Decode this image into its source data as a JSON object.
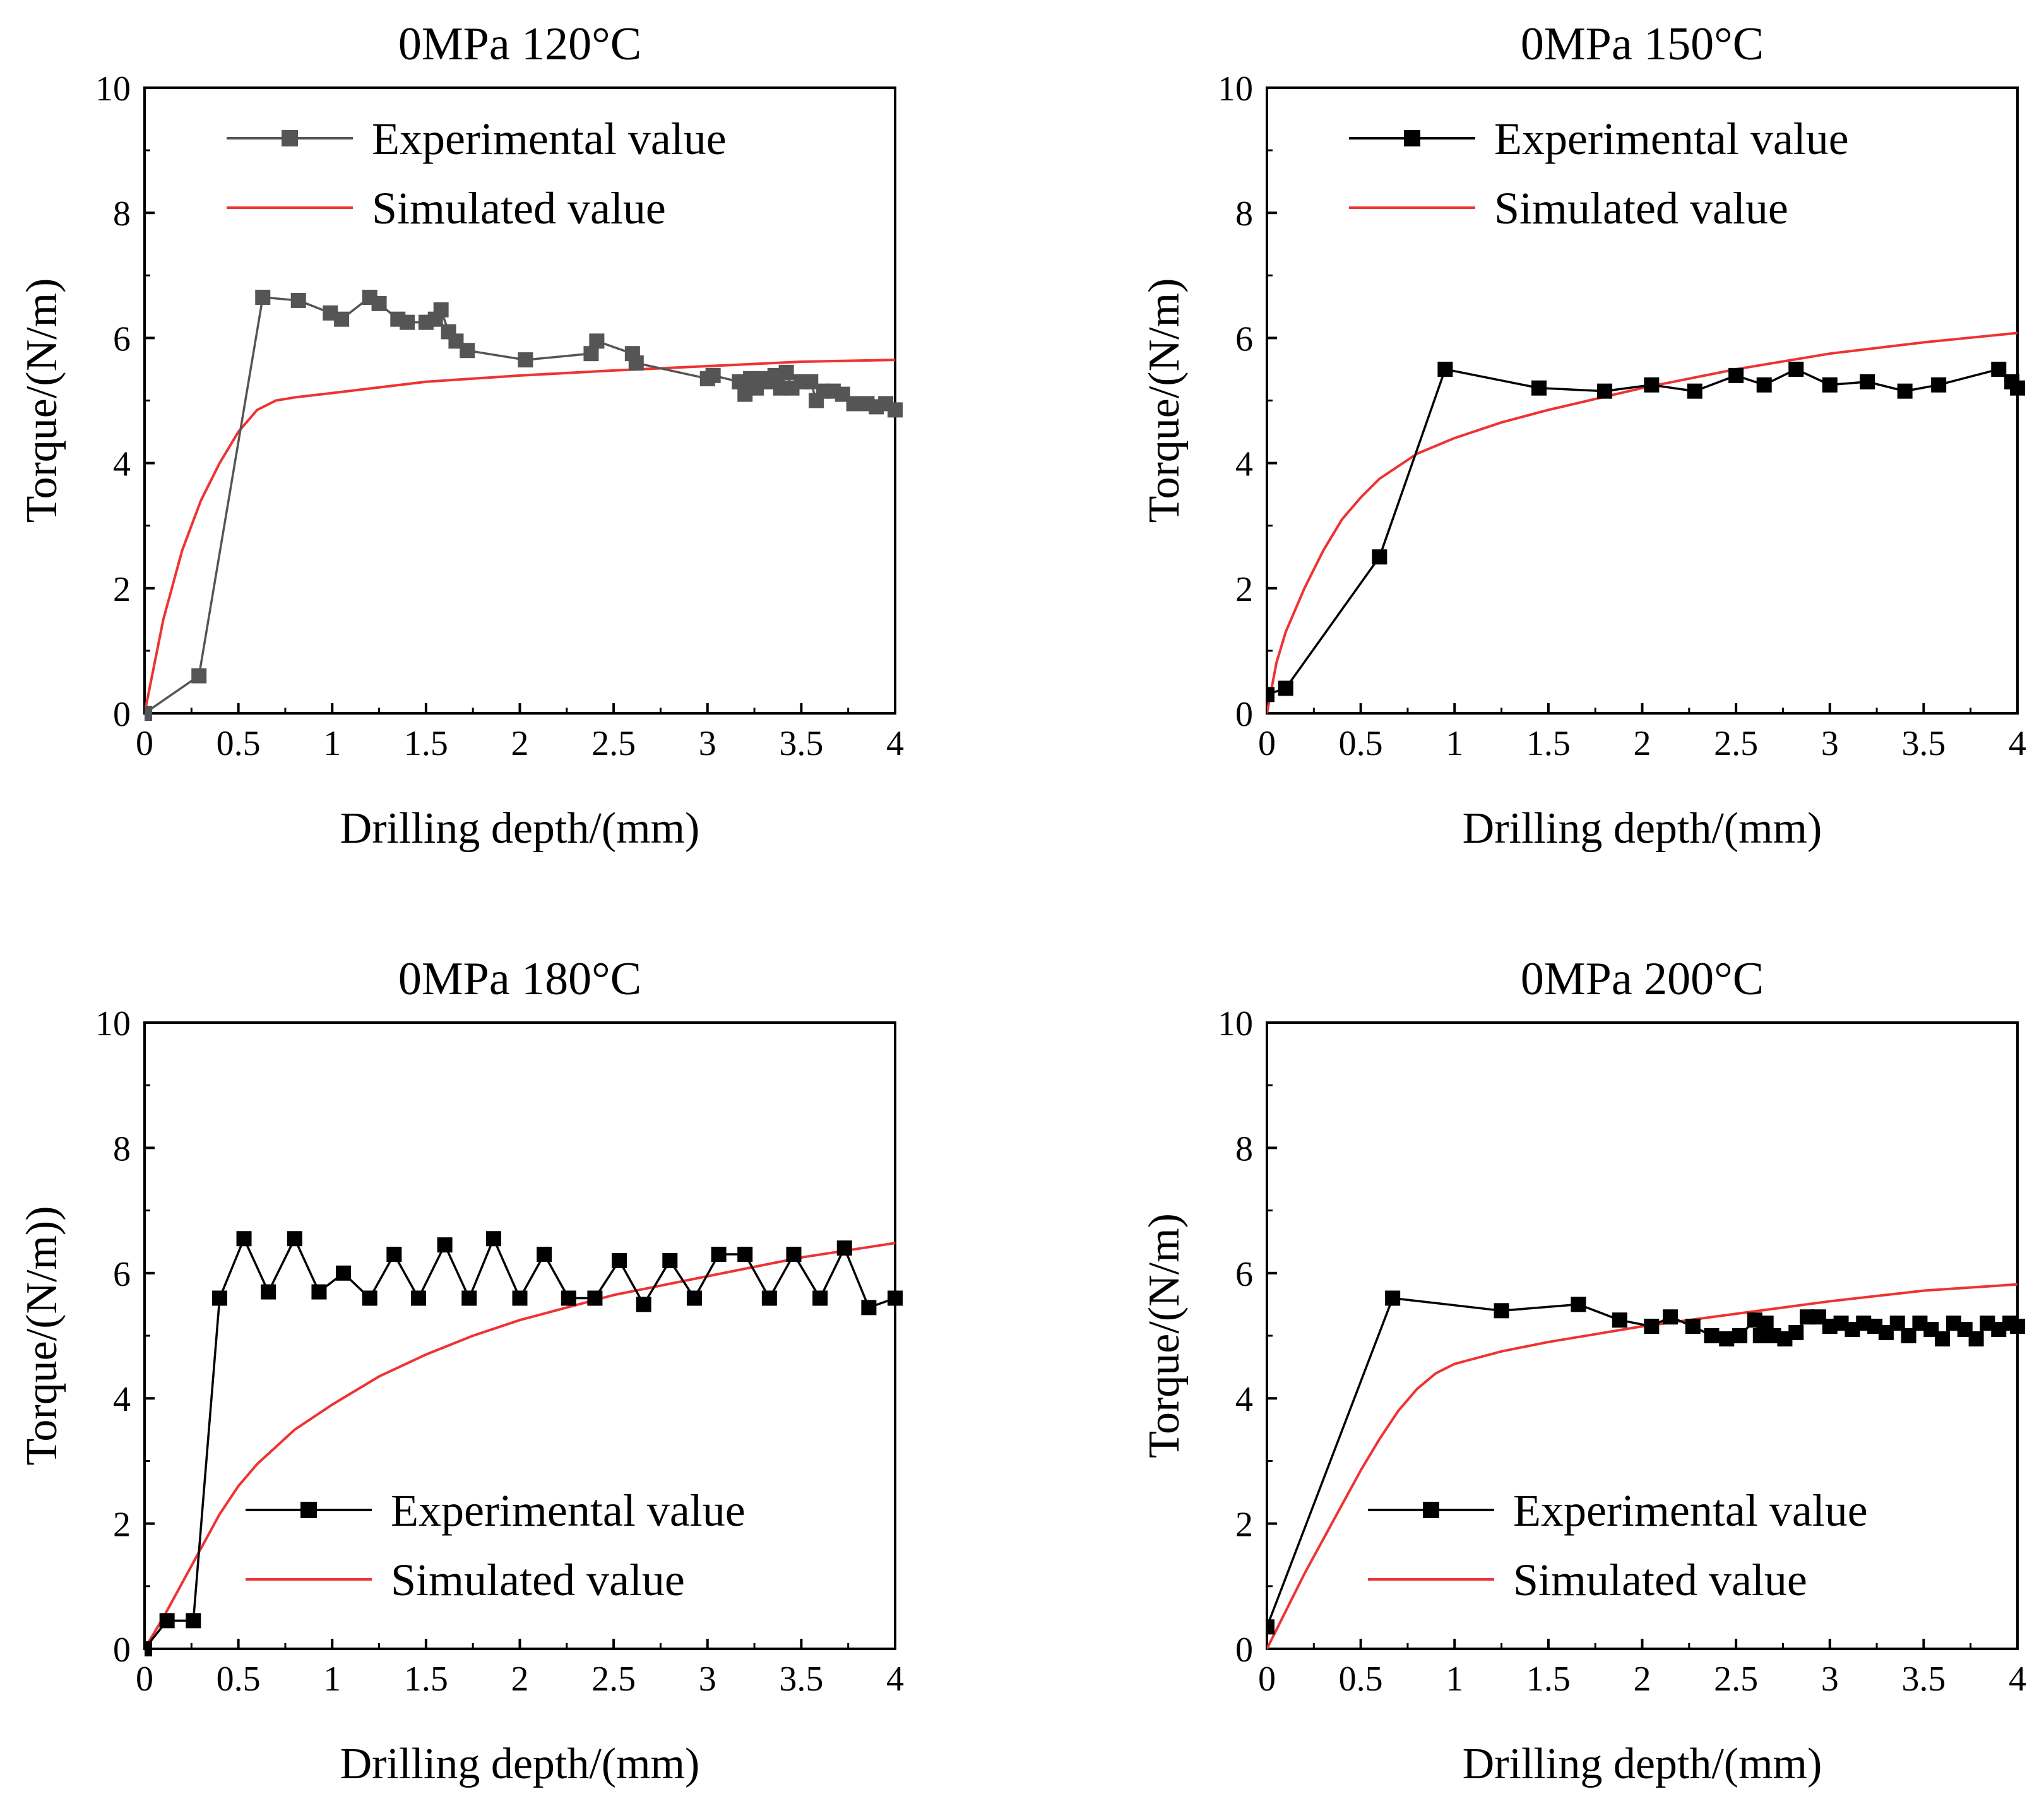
{
  "colors": {
    "experimental_panel1": "#555555",
    "experimental": "#000000",
    "simulated": "#ee3333",
    "axis": "#000000"
  },
  "chart_data": [
    {
      "type": "line",
      "title": "0MPa 120°C",
      "xlabel": "Drilling depth/(mm)",
      "ylabel": "Torque/(N/m)",
      "xlim": [
        0,
        4
      ],
      "ylim": [
        0,
        10
      ],
      "xticks": [
        "0",
        "0.5",
        "1",
        "1.5",
        "2",
        "2.5",
        "3",
        "3.5",
        "4"
      ],
      "yticks": [
        "0",
        "2",
        "4",
        "6",
        "8",
        "10"
      ],
      "legend_position": "top",
      "series": [
        {
          "name": "Experimental value",
          "marker": "square",
          "x": [
            0,
            0.29,
            0.63,
            0.82,
            0.99,
            1.05,
            1.2,
            1.25,
            1.35,
            1.4,
            1.5,
            1.55,
            1.58,
            1.62,
            1.66,
            1.72,
            2.03,
            2.38,
            2.41,
            2.6,
            2.62,
            3.0,
            3.03,
            3.17,
            3.2,
            3.23,
            3.26,
            3.3,
            3.33,
            3.36,
            3.39,
            3.42,
            3.45,
            3.5,
            3.55,
            3.58,
            3.62,
            3.67,
            3.72,
            3.78,
            3.85,
            3.9,
            3.95,
            4.0
          ],
          "y": [
            0,
            0.6,
            6.65,
            6.6,
            6.4,
            6.3,
            6.65,
            6.55,
            6.3,
            6.25,
            6.25,
            6.3,
            6.45,
            6.1,
            5.95,
            5.8,
            5.65,
            5.75,
            5.95,
            5.75,
            5.6,
            5.35,
            5.4,
            5.3,
            5.1,
            5.35,
            5.2,
            5.35,
            5.3,
            5.4,
            5.2,
            5.45,
            5.2,
            5.3,
            5.3,
            5.0,
            5.15,
            5.15,
            5.1,
            4.95,
            4.95,
            4.9,
            4.95,
            4.85
          ]
        },
        {
          "name": "Simulated value",
          "x": [
            0,
            0.1,
            0.2,
            0.3,
            0.4,
            0.5,
            0.6,
            0.7,
            0.8,
            1.0,
            1.5,
            2.0,
            2.5,
            3.0,
            3.5,
            4.0
          ],
          "y": [
            0,
            1.5,
            2.6,
            3.4,
            4.0,
            4.5,
            4.85,
            5.0,
            5.05,
            5.12,
            5.3,
            5.4,
            5.48,
            5.55,
            5.62,
            5.65
          ]
        }
      ]
    },
    {
      "type": "line",
      "title": "0MPa 150°C",
      "xlabel": "Drilling depth/(mm)",
      "ylabel": "Torque/(N/m)",
      "xlim": [
        0,
        4
      ],
      "ylim": [
        0,
        10
      ],
      "xticks": [
        "0",
        "0.5",
        "1",
        "1.5",
        "2",
        "2.5",
        "3",
        "3.5",
        "4"
      ],
      "yticks": [
        "0",
        "2",
        "4",
        "6",
        "8",
        "10"
      ],
      "legend_position": "top",
      "series": [
        {
          "name": "Experimental value",
          "marker": "square",
          "x": [
            0,
            0.1,
            0.6,
            0.95,
            1.45,
            1.8,
            2.05,
            2.28,
            2.5,
            2.65,
            2.82,
            3.0,
            3.2,
            3.4,
            3.58,
            3.9,
            3.97,
            4.0
          ],
          "y": [
            0.3,
            0.4,
            2.5,
            5.5,
            5.2,
            5.15,
            5.25,
            5.15,
            5.4,
            5.25,
            5.5,
            5.25,
            5.3,
            5.15,
            5.25,
            5.5,
            5.3,
            5.2
          ]
        },
        {
          "name": "Simulated value",
          "x": [
            0,
            0.05,
            0.1,
            0.2,
            0.3,
            0.4,
            0.5,
            0.6,
            0.7,
            0.8,
            1.0,
            1.25,
            1.5,
            2.0,
            2.5,
            3.0,
            3.5,
            4.0
          ],
          "y": [
            0,
            0.8,
            1.3,
            2.0,
            2.6,
            3.1,
            3.45,
            3.75,
            3.95,
            4.15,
            4.4,
            4.65,
            4.85,
            5.2,
            5.5,
            5.75,
            5.93,
            6.08
          ]
        }
      ]
    },
    {
      "type": "line",
      "title": "0MPa 180°C",
      "xlabel": "Drilling depth/(mm)",
      "ylabel": "Torque/(N/m))",
      "xlim": [
        0,
        4
      ],
      "ylim": [
        0,
        10
      ],
      "xticks": [
        "0",
        "0.5",
        "1",
        "1.5",
        "2",
        "2.5",
        "3",
        "3.5",
        "4"
      ],
      "yticks": [
        "0",
        "2",
        "4",
        "6",
        "8",
        "10"
      ],
      "legend_position": "bottom",
      "series": [
        {
          "name": "Experimental value",
          "marker": "square",
          "x": [
            0,
            0.12,
            0.26,
            0.4,
            0.53,
            0.66,
            0.8,
            0.93,
            1.06,
            1.2,
            1.33,
            1.46,
            1.6,
            1.73,
            1.86,
            2.0,
            2.13,
            2.26,
            2.4,
            2.53,
            2.66,
            2.8,
            2.93,
            3.06,
            3.2,
            3.33,
            3.46,
            3.6,
            3.73,
            3.86,
            4.0
          ],
          "y": [
            0,
            0.45,
            0.45,
            5.6,
            6.55,
            5.7,
            6.55,
            5.7,
            6.0,
            5.6,
            6.3,
            5.6,
            6.45,
            5.6,
            6.55,
            5.6,
            6.3,
            5.6,
            5.6,
            6.2,
            5.5,
            6.2,
            5.6,
            6.3,
            6.3,
            5.6,
            6.3,
            5.6,
            6.4,
            5.45,
            5.6
          ]
        },
        {
          "name": "Simulated value",
          "x": [
            0,
            0.1,
            0.2,
            0.3,
            0.4,
            0.5,
            0.6,
            0.8,
            1.0,
            1.25,
            1.5,
            1.75,
            2.0,
            2.5,
            3.0,
            3.5,
            4.0
          ],
          "y": [
            0,
            0.5,
            1.05,
            1.6,
            2.15,
            2.6,
            2.95,
            3.5,
            3.9,
            4.35,
            4.7,
            5.0,
            5.25,
            5.65,
            5.95,
            6.25,
            6.48
          ]
        }
      ]
    },
    {
      "type": "line",
      "title": "0MPa 200°C",
      "xlabel": "Drilling depth/(mm)",
      "ylabel": "Torque/(N/m)",
      "xlim": [
        0,
        4
      ],
      "ylim": [
        0,
        10
      ],
      "xticks": [
        "0",
        "0.5",
        "1",
        "1.5",
        "2",
        "2.5",
        "3",
        "3.5",
        "4"
      ],
      "yticks": [
        "0",
        "2",
        "4",
        "6",
        "8",
        "10"
      ],
      "legend_position": "bottom",
      "series": [
        {
          "name": "Experimental value",
          "marker": "square",
          "x": [
            0,
            0.67,
            1.25,
            1.66,
            1.88,
            2.05,
            2.15,
            2.27,
            2.37,
            2.45,
            2.52,
            2.6,
            2.63,
            2.66,
            2.7,
            2.76,
            2.82,
            2.88,
            2.94,
            3.0,
            3.06,
            3.12,
            3.18,
            3.24,
            3.3,
            3.36,
            3.42,
            3.48,
            3.54,
            3.6,
            3.66,
            3.72,
            3.78,
            3.84,
            3.9,
            3.96,
            4.0
          ],
          "y": [
            0.35,
            5.6,
            5.4,
            5.5,
            5.25,
            5.15,
            5.3,
            5.15,
            5.0,
            4.95,
            5.0,
            5.25,
            5.0,
            5.2,
            5.0,
            4.95,
            5.05,
            5.3,
            5.3,
            5.15,
            5.2,
            5.1,
            5.2,
            5.15,
            5.05,
            5.2,
            5.0,
            5.2,
            5.1,
            4.95,
            5.2,
            5.1,
            4.95,
            5.2,
            5.1,
            5.2,
            5.15
          ]
        },
        {
          "name": "Simulated value",
          "x": [
            0,
            0.1,
            0.2,
            0.3,
            0.4,
            0.5,
            0.6,
            0.7,
            0.8,
            0.9,
            1.0,
            1.25,
            1.5,
            2.0,
            2.5,
            3.0,
            3.5,
            4.0
          ],
          "y": [
            0,
            0.6,
            1.2,
            1.75,
            2.3,
            2.85,
            3.35,
            3.8,
            4.15,
            4.4,
            4.55,
            4.75,
            4.9,
            5.15,
            5.35,
            5.55,
            5.72,
            5.82
          ]
        }
      ]
    }
  ]
}
